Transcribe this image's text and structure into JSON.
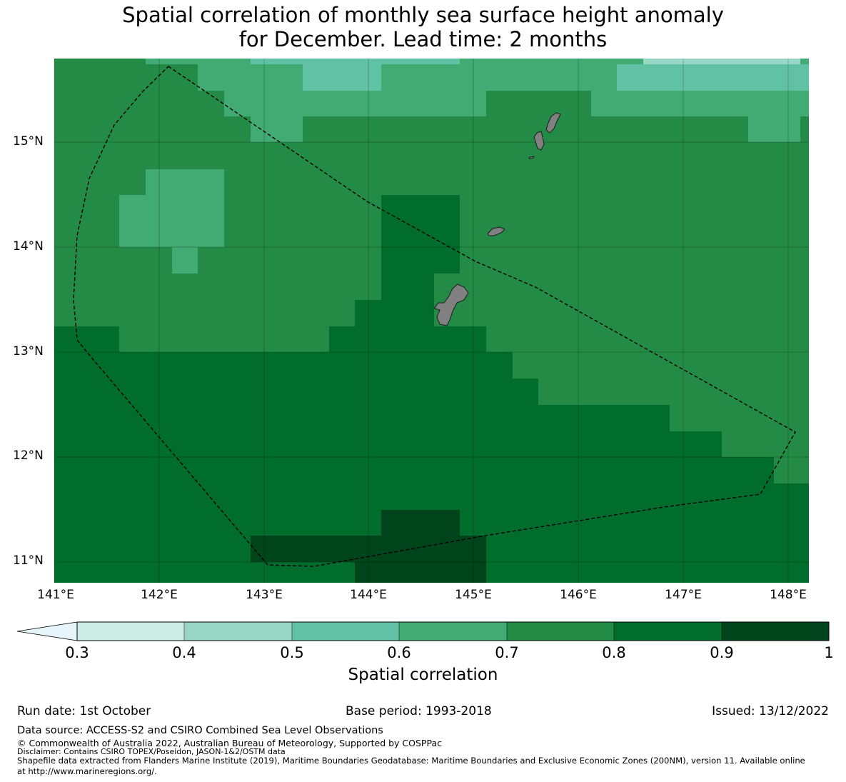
{
  "title": {
    "line1": "Spatial correlation of monthly sea surface height anomaly",
    "line2": "for December. Lead time: 2 months"
  },
  "map": {
    "lon_range": [
      141.0,
      148.2
    ],
    "lat_range": [
      10.8,
      15.8
    ],
    "lat_ticks": [
      "15°N",
      "14°N",
      "13°N",
      "12°N",
      "11°N"
    ],
    "lon_ticks": [
      "141°E",
      "142°E",
      "143°E",
      "144°E",
      "145°E",
      "146°E",
      "147°E",
      "148°E"
    ],
    "colors": {
      "c06": "#41ab73",
      "c07": "#238b45",
      "c08": "#006d2c",
      "c09": "#00441b",
      "c05": "#61c1a5",
      "c04": "#98d7c5",
      "land": "#808080",
      "eez": "#000000"
    },
    "grid_layer": "sea surface height anomaly correlation grid",
    "land_layer": "Mariana Islands"
  },
  "colorbar": {
    "ticks": [
      "0.3",
      "0.4",
      "0.5",
      "0.6",
      "0.7",
      "0.8",
      "0.9",
      "1"
    ],
    "label": "Spatial correlation",
    "bin_colors": [
      "#cdece4",
      "#98d7c5",
      "#61c1a5",
      "#41ab73",
      "#238b45",
      "#006d2c",
      "#00441b"
    ],
    "extend_color": "#e6f5f9"
  },
  "footer": {
    "run_date": "Run date: 1st October",
    "base_period": "Base period: 1993-2018",
    "issued": "Issued: 13/12/2022",
    "data_source": "Data source: ACCESS-S2 and CSIRO Combined Sea Level Observations",
    "copyright": "© Commonwealth of Australia 2022, Australian Bureau of Meteorology, Supported by COSPPac",
    "disclaimer": "Disclaimer: Contains CSIRO TOPEX/Poseidon, JASON-1&2/OSTM data",
    "shapefile": "Shapefile data extracted from Flanders Marine Institute (2019), Maritime Boundaries Geodatabase: Maritime Boundaries and Exclusive Economic Zones (200NM), version 11. Available online",
    "url_line": "at http://www.marineregions.org/."
  }
}
